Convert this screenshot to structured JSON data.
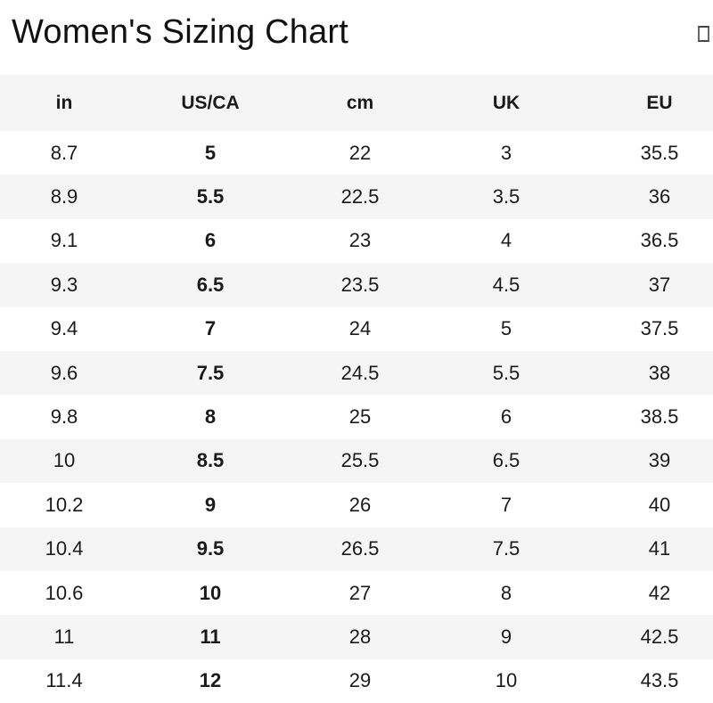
{
  "page": {
    "title": "Women's Sizing Chart"
  },
  "icons": {
    "top_right_glyph": "missing-glyph-box"
  },
  "colors": {
    "background": "#ffffff",
    "header_row_bg": "#f5f5f5",
    "alt_row_bg": "#f5f5f5",
    "text": "#1a1a1a",
    "glyph_border": "#555555"
  },
  "chart_data": {
    "type": "table",
    "title": "Women's Sizing Chart",
    "columns": [
      "in",
      "US/CA",
      "cm",
      "UK",
      "EU"
    ],
    "bold_column": "US/CA",
    "rows": [
      [
        "8.7",
        "5",
        "22",
        "3",
        "35.5"
      ],
      [
        "8.9",
        "5.5",
        "22.5",
        "3.5",
        "36"
      ],
      [
        "9.1",
        "6",
        "23",
        "4",
        "36.5"
      ],
      [
        "9.3",
        "6.5",
        "23.5",
        "4.5",
        "37"
      ],
      [
        "9.4",
        "7",
        "24",
        "5",
        "37.5"
      ],
      [
        "9.6",
        "7.5",
        "24.5",
        "5.5",
        "38"
      ],
      [
        "9.8",
        "8",
        "25",
        "6",
        "38.5"
      ],
      [
        "10",
        "8.5",
        "25.5",
        "6.5",
        "39"
      ],
      [
        "10.2",
        "9",
        "26",
        "7",
        "40"
      ],
      [
        "10.4",
        "9.5",
        "26.5",
        "7.5",
        "41"
      ],
      [
        "10.6",
        "10",
        "27",
        "8",
        "42"
      ],
      [
        "11",
        "11",
        "28",
        "9",
        "42.5"
      ],
      [
        "11.4",
        "12",
        "29",
        "10",
        "43.5"
      ]
    ],
    "layout": {
      "zebra_striping": true,
      "first_data_row_bg": "white",
      "header_bg": "light-gray"
    }
  }
}
